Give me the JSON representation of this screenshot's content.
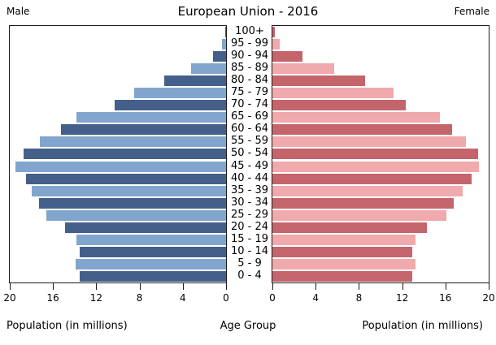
{
  "header": {
    "title": "European Union - 2016",
    "male_label": "Male",
    "female_label": "Female"
  },
  "footer": {
    "left_caption": "Population (in millions)",
    "center_caption": "Age Group",
    "right_caption": "Population (in millions)"
  },
  "chart_data": {
    "type": "bar",
    "subtype": "population-pyramid",
    "title": "European Union - 2016",
    "age_groups_top_to_bottom": [
      "100+",
      "95 - 99",
      "90 - 94",
      "85 - 89",
      "80 - 84",
      "75 - 79",
      "70 - 74",
      "65 - 69",
      "60 - 64",
      "55 - 59",
      "50 - 54",
      "45 - 49",
      "40 - 44",
      "35 - 39",
      "30 - 34",
      "25 - 29",
      "20 - 24",
      "15 - 19",
      "10 - 14",
      "5 - 9",
      "0 - 4"
    ],
    "series": [
      {
        "name": "Male",
        "side": "left",
        "values_millions": [
          0.1,
          0.4,
          1.2,
          3.2,
          5.7,
          8.5,
          10.3,
          13.8,
          15.3,
          17.2,
          18.7,
          19.5,
          18.5,
          18.0,
          17.3,
          16.6,
          14.9,
          13.8,
          13.5,
          13.9,
          13.5
        ]
      },
      {
        "name": "Female",
        "side": "right",
        "values_millions": [
          0.25,
          0.7,
          2.8,
          5.7,
          8.6,
          11.2,
          12.3,
          15.5,
          16.6,
          17.9,
          19.0,
          19.1,
          18.4,
          17.6,
          16.8,
          16.1,
          14.3,
          13.2,
          12.9,
          13.2,
          12.9
        ]
      }
    ],
    "x_axis": {
      "label": "Population (in millions)",
      "ticks": [
        0,
        4,
        8,
        12,
        16,
        20
      ],
      "range": [
        0,
        20
      ],
      "unit": "millions"
    },
    "center_axis_label": "Age Group",
    "colors": {
      "male_dark": "#44608a",
      "male_light": "#82a5cd",
      "female_dark": "#c4646b",
      "female_light": "#f0a9ac"
    },
    "grid": false,
    "legend_position": "none"
  }
}
